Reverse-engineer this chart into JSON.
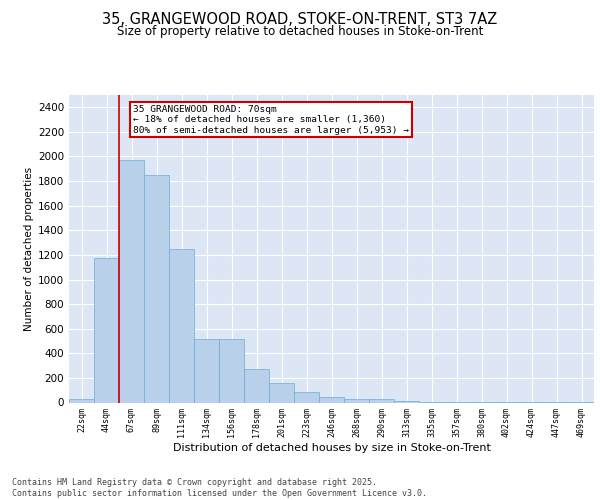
{
  "title1": "35, GRANGEWOOD ROAD, STOKE-ON-TRENT, ST3 7AZ",
  "title2": "Size of property relative to detached houses in Stoke-on-Trent",
  "xlabel": "Distribution of detached houses by size in Stoke-on-Trent",
  "ylabel": "Number of detached properties",
  "bar_values": [
    25,
    1175,
    1975,
    1850,
    1245,
    515,
    515,
    275,
    155,
    85,
    45,
    30,
    28,
    12,
    8,
    5,
    3,
    2,
    2,
    1,
    1
  ],
  "bar_labels": [
    "22sqm",
    "44sqm",
    "67sqm",
    "89sqm",
    "111sqm",
    "134sqm",
    "156sqm",
    "178sqm",
    "201sqm",
    "223sqm",
    "246sqm",
    "268sqm",
    "290sqm",
    "313sqm",
    "335sqm",
    "357sqm",
    "380sqm",
    "402sqm",
    "424sqm",
    "447sqm",
    "469sqm"
  ],
  "bar_color": "#b8d0ea",
  "bar_edgecolor": "#6aaed6",
  "background_color": "#dce6f5",
  "grid_color": "#ffffff",
  "vline_color": "#cc0000",
  "annotation_text": "35 GRANGEWOOD ROAD: 70sqm\n← 18% of detached houses are smaller (1,360)\n80% of semi-detached houses are larger (5,953) →",
  "annotation_box_facecolor": "#ffffff",
  "annotation_box_edgecolor": "#cc0000",
  "footer_text": "Contains HM Land Registry data © Crown copyright and database right 2025.\nContains public sector information licensed under the Open Government Licence v3.0.",
  "ylim": [
    0,
    2500
  ],
  "yticks": [
    0,
    200,
    400,
    600,
    800,
    1000,
    1200,
    1400,
    1600,
    1800,
    2000,
    2200,
    2400
  ]
}
